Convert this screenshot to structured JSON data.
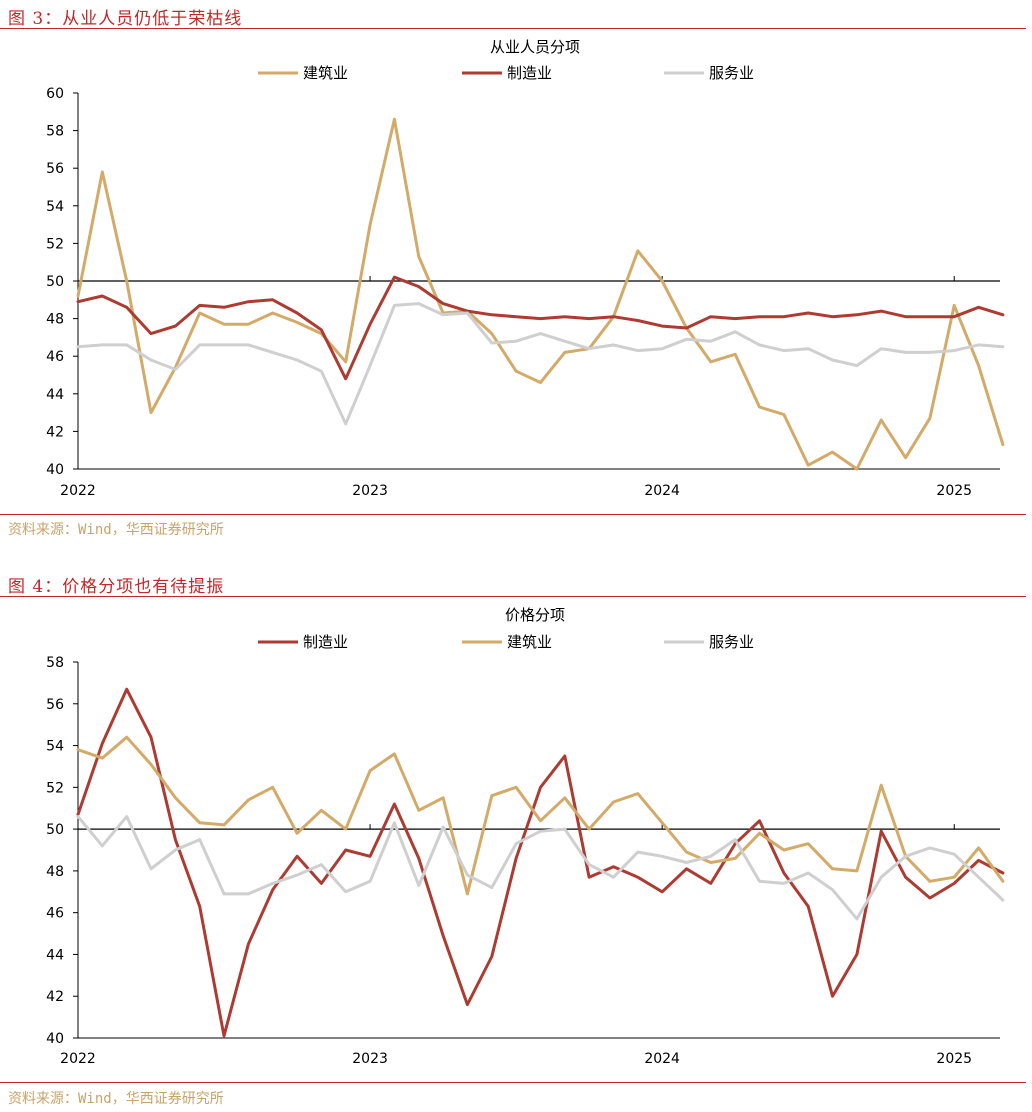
{
  "figures": [
    {
      "heading": "图 3：从业人员仍低于荣枯线",
      "source": "资料来源：Wind，华西证券研究所",
      "chart_data": {
        "type": "line",
        "title": "从业人员分项",
        "xlabel": "",
        "ylabel": "",
        "ylim": [
          40,
          60
        ],
        "yticks": [
          40,
          42,
          44,
          46,
          48,
          50,
          52,
          54,
          56,
          58,
          60
        ],
        "xticks": [
          "2022",
          "2023",
          "2024",
          "2025"
        ],
        "reference_line": 50,
        "legend_position": "top",
        "x": [
          "2022-01",
          "2022-02",
          "2022-03",
          "2022-04",
          "2022-05",
          "2022-06",
          "2022-07",
          "2022-08",
          "2022-09",
          "2022-10",
          "2022-11",
          "2022-12",
          "2023-01",
          "2023-02",
          "2023-03",
          "2023-04",
          "2023-05",
          "2023-06",
          "2023-07",
          "2023-08",
          "2023-09",
          "2023-10",
          "2023-11",
          "2023-12",
          "2024-01",
          "2024-02",
          "2024-03",
          "2024-04",
          "2024-05",
          "2024-06",
          "2024-07",
          "2024-08",
          "2024-09",
          "2024-10",
          "2024-11",
          "2024-12",
          "2025-01",
          "2025-02",
          "2025-03"
        ],
        "series": [
          {
            "name": "建筑业",
            "color": "#d3aa67",
            "values": [
              49.2,
              55.8,
              50.0,
              43.0,
              45.4,
              48.3,
              47.7,
              47.7,
              48.3,
              47.8,
              47.2,
              45.7,
              53.0,
              58.6,
              51.3,
              48.3,
              48.4,
              47.2,
              45.2,
              44.6,
              46.2,
              46.4,
              48.1,
              51.6,
              50.0,
              47.5,
              45.7,
              46.1,
              43.3,
              42.9,
              40.2,
              40.9,
              40.0,
              42.6,
              40.6,
              42.7,
              48.7,
              45.5,
              41.3
            ]
          },
          {
            "name": "制造业",
            "color": "#ad3b32",
            "values": [
              48.9,
              49.2,
              48.6,
              47.2,
              47.6,
              48.7,
              48.6,
              48.9,
              49.0,
              48.3,
              47.4,
              44.8,
              47.7,
              50.2,
              49.7,
              48.8,
              48.4,
              48.2,
              48.1,
              48.0,
              48.1,
              48.0,
              48.1,
              47.9,
              47.6,
              47.5,
              48.1,
              48.0,
              48.1,
              48.1,
              48.3,
              48.1,
              48.2,
              48.4,
              48.1,
              48.1,
              48.1,
              48.6,
              48.2
            ]
          },
          {
            "name": "服务业",
            "color": "#cfcfcf",
            "values": [
              46.5,
              46.6,
              46.6,
              45.8,
              45.3,
              46.6,
              46.6,
              46.6,
              46.2,
              45.8,
              45.2,
              42.4,
              45.5,
              48.7,
              48.8,
              48.2,
              48.3,
              46.7,
              46.8,
              47.2,
              46.8,
              46.4,
              46.6,
              46.3,
              46.4,
              46.9,
              46.8,
              47.3,
              46.6,
              46.3,
              46.4,
              45.8,
              45.5,
              46.4,
              46.2,
              46.2,
              46.3,
              46.6,
              46.5
            ]
          }
        ]
      }
    },
    {
      "heading": "图 4：价格分项也有待提振",
      "source": "资料来源：Wind，华西证券研究所",
      "chart_data": {
        "type": "line",
        "title": "价格分项",
        "xlabel": "",
        "ylabel": "",
        "ylim": [
          40,
          58
        ],
        "yticks": [
          40,
          42,
          44,
          46,
          48,
          50,
          52,
          54,
          56,
          58
        ],
        "xticks": [
          "2022",
          "2023",
          "2024",
          "2025"
        ],
        "reference_line": 50,
        "legend_position": "top",
        "x": [
          "2022-01",
          "2022-02",
          "2022-03",
          "2022-04",
          "2022-05",
          "2022-06",
          "2022-07",
          "2022-08",
          "2022-09",
          "2022-10",
          "2022-11",
          "2022-12",
          "2023-01",
          "2023-02",
          "2023-03",
          "2023-04",
          "2023-05",
          "2023-06",
          "2023-07",
          "2023-08",
          "2023-09",
          "2023-10",
          "2023-11",
          "2023-12",
          "2024-01",
          "2024-02",
          "2024-03",
          "2024-04",
          "2024-05",
          "2024-06",
          "2024-07",
          "2024-08",
          "2024-09",
          "2024-10",
          "2024-11",
          "2024-12",
          "2025-01",
          "2025-02",
          "2025-03"
        ],
        "series": [
          {
            "name": "制造业",
            "color": "#ad3b32",
            "values": [
              50.7,
              54.1,
              56.7,
              54.4,
              49.5,
              46.3,
              40.1,
              44.5,
              47.1,
              48.7,
              47.4,
              49.0,
              48.7,
              51.2,
              48.6,
              44.9,
              41.6,
              43.9,
              48.6,
              52.0,
              53.5,
              47.7,
              48.2,
              47.7,
              47.0,
              48.1,
              47.4,
              49.3,
              50.4,
              47.9,
              46.3,
              42.0,
              44.0,
              49.9,
              47.7,
              46.7,
              47.4,
              48.5,
              47.9
            ]
          },
          {
            "name": "建筑业",
            "color": "#d3aa67",
            "values": [
              53.8,
              53.4,
              54.4,
              53.1,
              51.5,
              50.3,
              50.2,
              51.4,
              52.0,
              49.8,
              50.9,
              50.0,
              52.8,
              53.6,
              50.9,
              51.5,
              46.9,
              51.6,
              52.0,
              50.4,
              51.5,
              50.0,
              51.3,
              51.7,
              50.3,
              48.9,
              48.4,
              48.6,
              49.8,
              49.0,
              49.3,
              48.1,
              48.0,
              52.1,
              48.7,
              47.5,
              47.7,
              49.1,
              47.5
            ]
          },
          {
            "name": "服务业",
            "color": "#cfcfcf",
            "values": [
              50.6,
              49.2,
              50.6,
              48.1,
              49.0,
              49.5,
              46.9,
              46.9,
              47.4,
              47.8,
              48.3,
              47.0,
              47.5,
              50.3,
              47.3,
              50.1,
              47.8,
              47.2,
              49.3,
              49.9,
              50.0,
              48.3,
              47.7,
              48.9,
              48.7,
              48.4,
              48.7,
              49.5,
              47.5,
              47.4,
              47.9,
              47.1,
              45.7,
              47.7,
              48.7,
              49.1,
              48.8,
              47.7,
              46.6
            ]
          }
        ]
      }
    }
  ]
}
